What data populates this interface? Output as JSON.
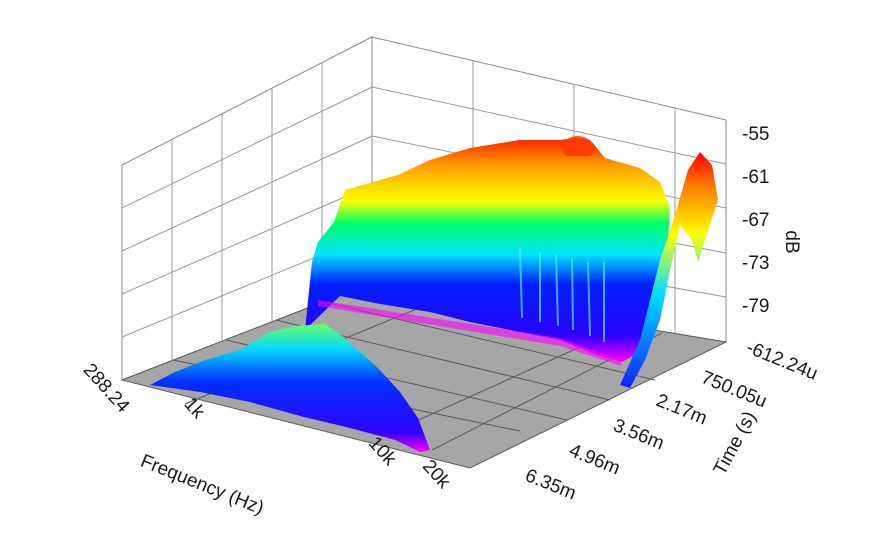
{
  "chart_data": {
    "type": "surface3d",
    "title": "",
    "xlabel": "Frequency (Hz)",
    "ylabel": "Time (s)",
    "zlabel": "dB",
    "x_ticks": [
      "288.24",
      "1k",
      "10k",
      "20k"
    ],
    "y_ticks": [
      "-612.24u",
      "750.05u",
      "2.17m",
      "3.56m",
      "4.96m",
      "6.35m"
    ],
    "z_ticks": [
      "-55",
      "-61",
      "-67",
      "-73",
      "-79"
    ],
    "zlim": [
      -85,
      -52
    ],
    "colormap": [
      "#ff00ff",
      "#0000ff",
      "#00ffff",
      "#00ff00",
      "#ffff00",
      "#ff8000",
      "#ff0000"
    ],
    "floor_color": "#a6a6a6",
    "grid": true
  }
}
